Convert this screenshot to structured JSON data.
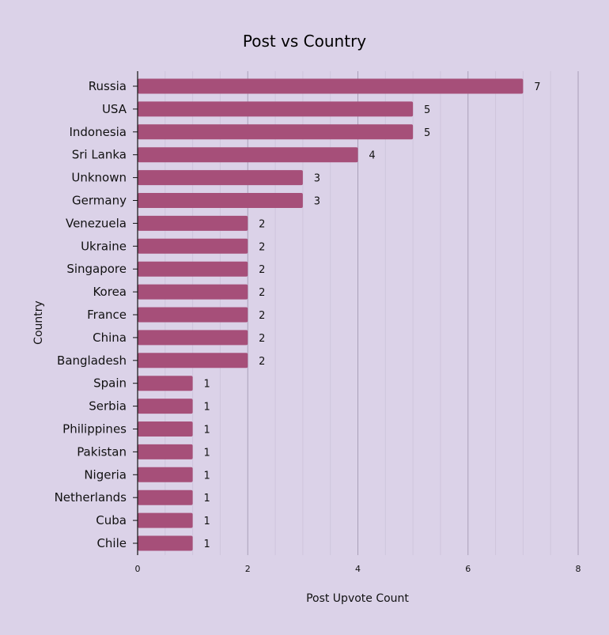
{
  "chart_data": {
    "type": "bar",
    "orientation": "horizontal",
    "title": "Post vs Country",
    "xlabel": "Post Upvote Count",
    "ylabel": "Country",
    "xlim": [
      0,
      8
    ],
    "xticks": [
      0,
      2,
      4,
      6,
      8
    ],
    "grid": true,
    "bar_color": "#a64f79",
    "background": "#dbd2e8",
    "categories": [
      "Russia",
      "USA",
      "Indonesia",
      "Sri Lanka",
      "Unknown",
      "Germany",
      "Venezuela",
      "Ukraine",
      "Singapore",
      "Korea",
      "France",
      "China",
      "Bangladesh",
      "Spain",
      "Serbia",
      "Philippines",
      "Pakistan",
      "Nigeria",
      "Netherlands",
      "Cuba",
      "Chile"
    ],
    "values": [
      7,
      5,
      5,
      4,
      3,
      3,
      2,
      2,
      2,
      2,
      2,
      2,
      2,
      1,
      1,
      1,
      1,
      1,
      1,
      1,
      1
    ]
  }
}
